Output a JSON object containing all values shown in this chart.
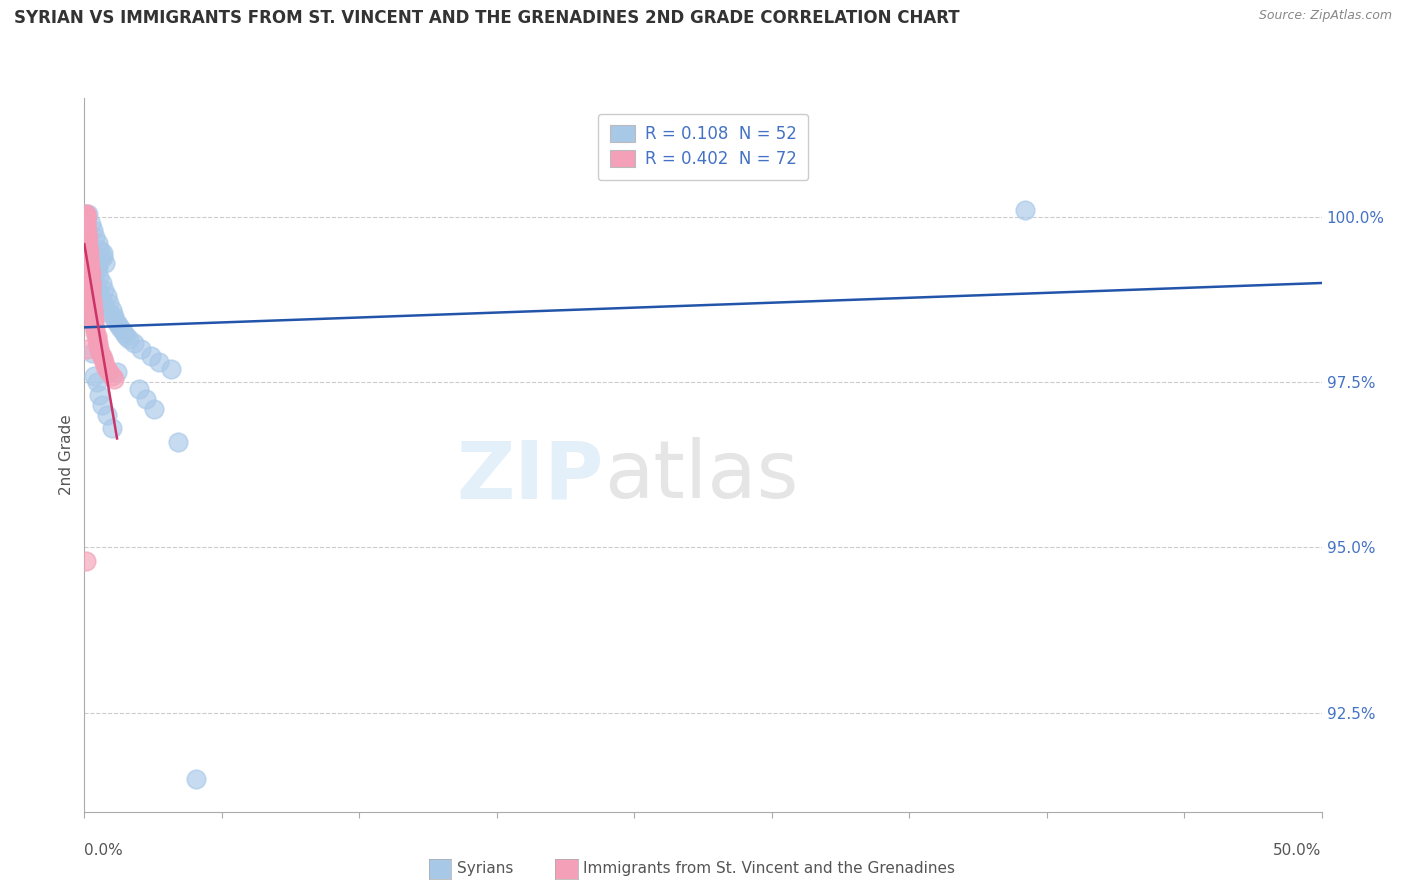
{
  "title": "SYRIAN VS IMMIGRANTS FROM ST. VINCENT AND THE GRENADINES 2ND GRADE CORRELATION CHART",
  "source": "Source: ZipAtlas.com",
  "ylabel": "2nd Grade",
  "ytick_labels": [
    "92.5%",
    "95.0%",
    "97.5%",
    "100.0%"
  ],
  "ytick_values": [
    92.5,
    95.0,
    97.5,
    100.0
  ],
  "xmin": 0.0,
  "xmax": 50.0,
  "ymin": 91.0,
  "ymax": 101.8,
  "legend_blue_r": "0.108",
  "legend_blue_n": "52",
  "legend_pink_r": "0.402",
  "legend_pink_n": "72",
  "blue_color": "#a8c8e8",
  "pink_color": "#f4a0b8",
  "trendline_blue_color": "#2255aa",
  "trendline_pink_color": "#cc3366",
  "blue_scatter_x": [
    0.15,
    0.25,
    0.35,
    0.45,
    0.55,
    0.65,
    0.75,
    0.85,
    0.5,
    0.6,
    0.7,
    0.8,
    0.9,
    1.0,
    1.1,
    1.2,
    1.3,
    1.5,
    1.7,
    2.0,
    2.3,
    2.7,
    3.0,
    3.5,
    0.4,
    0.5,
    0.6,
    0.7,
    0.8,
    1.0,
    1.2,
    1.4,
    1.8,
    0.3,
    0.4,
    0.5,
    0.6,
    0.7,
    0.9,
    1.1,
    1.6,
    2.2,
    2.8,
    3.8,
    0.45,
    0.55,
    0.65,
    0.75,
    1.3,
    2.5,
    38.0,
    4.5
  ],
  "blue_scatter_y": [
    100.05,
    99.9,
    99.8,
    99.7,
    99.6,
    99.5,
    99.4,
    99.3,
    99.2,
    99.1,
    99.0,
    98.9,
    98.8,
    98.7,
    98.6,
    98.5,
    98.4,
    98.3,
    98.2,
    98.1,
    98.0,
    97.9,
    97.8,
    97.7,
    99.05,
    98.95,
    98.85,
    98.75,
    98.65,
    98.55,
    98.45,
    98.35,
    98.15,
    97.95,
    97.6,
    97.5,
    97.3,
    97.15,
    97.0,
    96.8,
    98.25,
    97.4,
    97.1,
    96.6,
    99.15,
    99.25,
    99.35,
    99.45,
    97.65,
    97.25,
    100.1,
    91.5
  ],
  "pink_scatter_x": [
    0.05,
    0.05,
    0.05,
    0.08,
    0.08,
    0.08,
    0.1,
    0.1,
    0.1,
    0.12,
    0.12,
    0.15,
    0.15,
    0.15,
    0.18,
    0.18,
    0.2,
    0.2,
    0.2,
    0.22,
    0.22,
    0.25,
    0.25,
    0.25,
    0.28,
    0.28,
    0.3,
    0.3,
    0.3,
    0.35,
    0.35,
    0.35,
    0.4,
    0.4,
    0.4,
    0.45,
    0.45,
    0.5,
    0.5,
    0.55,
    0.55,
    0.6,
    0.65,
    0.7,
    0.75,
    0.8,
    0.85,
    0.9,
    1.0,
    1.1,
    1.2,
    0.12,
    0.18,
    0.22,
    0.3,
    0.08,
    0.1,
    0.15,
    0.2,
    0.25,
    0.05,
    0.05,
    0.08,
    0.1,
    0.12,
    0.15,
    0.18,
    0.2,
    0.22,
    0.25,
    0.05,
    0.1
  ],
  "pink_scatter_y": [
    100.05,
    100.0,
    99.95,
    99.9,
    99.85,
    99.8,
    99.75,
    99.7,
    99.65,
    99.6,
    99.55,
    99.5,
    99.45,
    99.4,
    99.35,
    99.3,
    99.25,
    99.2,
    99.15,
    99.1,
    99.05,
    99.0,
    98.95,
    98.9,
    98.85,
    98.8,
    98.75,
    98.7,
    98.65,
    98.6,
    98.55,
    98.5,
    98.45,
    98.4,
    98.35,
    98.3,
    98.25,
    98.2,
    98.15,
    98.1,
    98.05,
    98.0,
    97.95,
    97.9,
    97.85,
    97.8,
    97.75,
    97.7,
    97.65,
    97.6,
    97.55,
    99.6,
    99.3,
    99.1,
    98.7,
    99.8,
    99.7,
    99.5,
    99.2,
    99.0,
    100.05,
    100.0,
    99.85,
    99.75,
    99.65,
    99.55,
    99.45,
    99.35,
    99.25,
    99.15,
    94.8,
    98.0
  ]
}
